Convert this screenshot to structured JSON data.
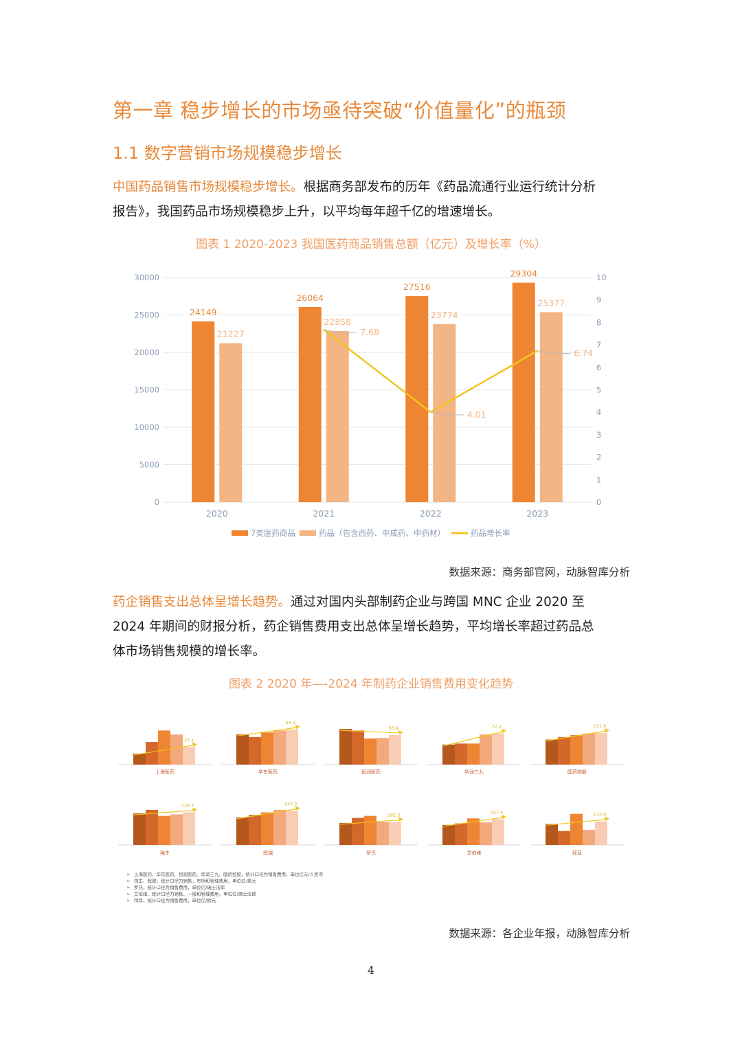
{
  "chapter_title": "第一章  稳步增长的市场亟待突破“价值量化”的瓶颈",
  "section_title": "1.1  数字营销市场规模稳步增长",
  "para1": {
    "highlight": "中国药品销售市场规模稳步增长。",
    "line1_rest": "根据商务部发布的历年《药品流通行业运行统计分析",
    "line2": "报告》，我国药品市场规模稳步上升，以平均每年超千亿的增速增长。"
  },
  "fig1_caption": "图表  1 2020-2023 我国医药商品销售总额（亿元）及增长率（%）",
  "fig1_source": "数据来源：商务部官网，动脉智库分析",
  "para2": {
    "highlight": "药企销售支出总体呈增长趋势。",
    "line1_rest": "通过对国内头部制药企业与跨国 MNC 企业 2020 至",
    "line2": "2024 年期间的财报分析，药企销售费用支出总体呈增长趋势，平均增长率超过药品总",
    "line3": "体市场销售规模的增长率。"
  },
  "fig2_caption": "图表  2 2020 年—-2024 年制药企业销售费用变化趋势",
  "fig2_notes": [
    "上海医药、华东医药、恒润医药、华润三九、国药控股，统计口径为销售费用，单位亿元/人民币",
    "强生、辉瑞，统计口径为销售，市场和管理费用，单位亿/美元",
    "罗氏，统计口径为销售费用，单位亿/瑞士法郎",
    "艾伯维，统计口径为销售、一般和管理费用，单位亿/瑞士法郎",
    "拜耳，统计口径为销售费用，单位亿/欧元"
  ],
  "fig2_source": "数据来源：各企业年报，动脉智库分析",
  "page_number": "4",
  "colors": {
    "accent": "#e88a3c",
    "bar_dark": "#ee8533",
    "bar_light": "#f3b584",
    "line": "#f2c41c",
    "mini_bars": [
      "#b5581e",
      "#d4682a",
      "#ee8533",
      "#f3a97c",
      "#f8cdb3"
    ]
  },
  "chart_data": [
    {
      "type": "bar",
      "categories": [
        "2020",
        "2021",
        "2022",
        "2023"
      ],
      "series": [
        {
          "name": "7类医药商品",
          "values": [
            24149,
            26064,
            27516,
            29304
          ]
        },
        {
          "name": "药品（包含西药、中成药、中药材）",
          "values": [
            21227,
            22858,
            23774,
            25377
          ]
        }
      ],
      "line_series": {
        "name": "药品增长率",
        "axis": "right",
        "x": [
          "2021",
          "2022",
          "2023"
        ],
        "values": [
          7.68,
          4.01,
          6.74
        ]
      },
      "ylim": [
        0,
        30000
      ],
      "y_ticks": [
        "0",
        "5000",
        "10000",
        "15000",
        "20000",
        "25000",
        "30000"
      ],
      "y2lim": [
        0,
        10
      ],
      "y2_ticks": [
        "0",
        "1",
        "2",
        "3",
        "4",
        "5",
        "6",
        "7",
        "8",
        "9",
        "10"
      ],
      "legend": "bottom",
      "grid": true
    },
    {
      "type": "bar",
      "small_multiples": [
        {
          "name": "上海医药",
          "values": [
            0.22,
            0.45,
            0.68,
            0.6,
            0.35
          ],
          "label": "127.1"
        },
        {
          "name": "华东医药",
          "values": [
            0.6,
            0.55,
            0.64,
            0.68,
            0.7
          ],
          "label": "64.1"
        },
        {
          "name": "恒润医药",
          "values": [
            0.71,
            0.68,
            0.52,
            0.53,
            0.59
          ],
          "label": "83.4"
        },
        {
          "name": "华润三九",
          "values": [
            0.4,
            0.42,
            0.42,
            0.6,
            0.62
          ],
          "label": "72.2"
        },
        {
          "name": "国药控股",
          "values": [
            0.5,
            0.55,
            0.59,
            0.62,
            0.63
          ],
          "label": "171.6"
        },
        {
          "name": "强生",
          "values": [
            0.63,
            0.7,
            0.58,
            0.61,
            0.65
          ],
          "label": "228.7"
        },
        {
          "name": "辉瑞",
          "values": [
            0.55,
            0.6,
            0.65,
            0.7,
            0.68
          ],
          "label": "147.3"
        },
        {
          "name": "罗氏",
          "values": [
            0.44,
            0.54,
            0.58,
            0.46,
            0.46
          ],
          "label": "162.3"
        },
        {
          "name": "艾伯维",
          "values": [
            0.4,
            0.43,
            0.53,
            0.45,
            0.51
          ],
          "label": "147.5"
        },
        {
          "name": "拜耳",
          "values": [
            0.42,
            0.28,
            0.62,
            0.3,
            0.47
          ],
          "label": "133.6"
        }
      ]
    }
  ]
}
